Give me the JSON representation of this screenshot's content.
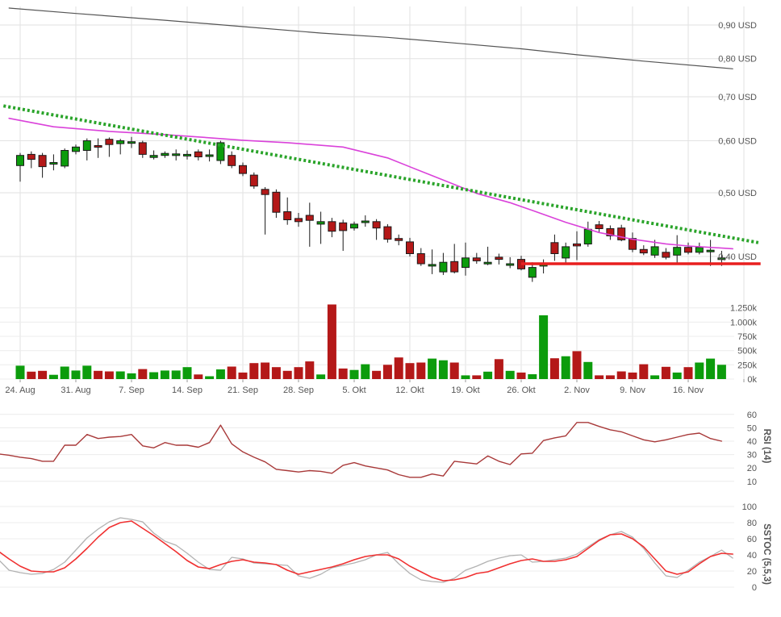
{
  "chart": {
    "type": "candlestick",
    "currency": "USD",
    "price_axis": {
      "labels": [
        "0,90 USD",
        "0,80 USD",
        "0,70 USD",
        "0,60 USD",
        "0,50 USD",
        "0,40 USD"
      ],
      "values": [
        0.9,
        0.8,
        0.7,
        0.6,
        0.5,
        0.4
      ],
      "scale": "log"
    },
    "date_axis": {
      "labels": [
        "24. Aug",
        "31. Aug",
        "7. Sep",
        "14. Sep",
        "21. Sep",
        "28. Sep",
        "5. Okt",
        "12. Okt",
        "19. Okt",
        "26. Okt",
        "2. Nov",
        "9. Nov",
        "16. Nov"
      ],
      "day_index": [
        0,
        5,
        10,
        15,
        20,
        25,
        30,
        35,
        40,
        45,
        50,
        55,
        60
      ],
      "extra_gridline_day": 65
    },
    "candles": [
      [
        0.55,
        0.575,
        0.52,
        0.57
      ],
      [
        0.572,
        0.578,
        0.545,
        0.562
      ],
      [
        0.57,
        0.575,
        0.527,
        0.548
      ],
      [
        0.553,
        0.572,
        0.541,
        0.556
      ],
      [
        0.549,
        0.584,
        0.545,
        0.58
      ],
      [
        0.578,
        0.592,
        0.572,
        0.587
      ],
      [
        0.58,
        0.605,
        0.56,
        0.6
      ],
      [
        0.59,
        0.605,
        0.565,
        0.587
      ],
      [
        0.603,
        0.607,
        0.567,
        0.592
      ],
      [
        0.594,
        0.604,
        0.572,
        0.6
      ],
      [
        0.596,
        0.608,
        0.585,
        0.598
      ],
      [
        0.596,
        0.6,
        0.565,
        0.572
      ],
      [
        0.566,
        0.58,
        0.562,
        0.57
      ],
      [
        0.57,
        0.578,
        0.565,
        0.574
      ],
      [
        0.572,
        0.582,
        0.56,
        0.573
      ],
      [
        0.571,
        0.58,
        0.562,
        0.572
      ],
      [
        0.577,
        0.582,
        0.56,
        0.567
      ],
      [
        0.57,
        0.582,
        0.558,
        0.571
      ],
      [
        0.56,
        0.6,
        0.553,
        0.596
      ],
      [
        0.57,
        0.578,
        0.545,
        0.55
      ],
      [
        0.55,
        0.556,
        0.53,
        0.535
      ],
      [
        0.532,
        0.537,
        0.507,
        0.512
      ],
      [
        0.506,
        0.51,
        0.432,
        0.497
      ],
      [
        0.501,
        0.506,
        0.458,
        0.467
      ],
      [
        0.468,
        0.492,
        0.447,
        0.455
      ],
      [
        0.457,
        0.466,
        0.444,
        0.452
      ],
      [
        0.462,
        0.483,
        0.414,
        0.454
      ],
      [
        0.448,
        0.468,
        0.418,
        0.452
      ],
      [
        0.452,
        0.458,
        0.428,
        0.437
      ],
      [
        0.45,
        0.455,
        0.408,
        0.438
      ],
      [
        0.442,
        0.452,
        0.438,
        0.448
      ],
      [
        0.452,
        0.462,
        0.444,
        0.453
      ],
      [
        0.452,
        0.456,
        0.424,
        0.442
      ],
      [
        0.444,
        0.448,
        0.42,
        0.425
      ],
      [
        0.426,
        0.432,
        0.416,
        0.423
      ],
      [
        0.421,
        0.427,
        0.4,
        0.404
      ],
      [
        0.404,
        0.412,
        0.387,
        0.39
      ],
      [
        0.388,
        0.41,
        0.376,
        0.389
      ],
      [
        0.379,
        0.405,
        0.375,
        0.392
      ],
      [
        0.393,
        0.418,
        0.377,
        0.379
      ],
      [
        0.385,
        0.42,
        0.374,
        0.398
      ],
      [
        0.398,
        0.405,
        0.39,
        0.394
      ],
      [
        0.39,
        0.414,
        0.388,
        0.392
      ],
      [
        0.399,
        0.404,
        0.389,
        0.396
      ],
      [
        0.388,
        0.399,
        0.384,
        0.39
      ],
      [
        0.396,
        0.401,
        0.381,
        0.383
      ],
      [
        0.372,
        0.392,
        0.366,
        0.385
      ],
      [
        0.387,
        0.396,
        0.377,
        0.389
      ],
      [
        0.42,
        0.432,
        0.394,
        0.404
      ],
      [
        0.398,
        0.42,
        0.39,
        0.414
      ],
      [
        0.418,
        0.437,
        0.395,
        0.415
      ],
      [
        0.418,
        0.452,
        0.414,
        0.44
      ],
      [
        0.447,
        0.453,
        0.435,
        0.441
      ],
      [
        0.441,
        0.446,
        0.424,
        0.43
      ],
      [
        0.442,
        0.447,
        0.422,
        0.424
      ],
      [
        0.426,
        0.435,
        0.406,
        0.41
      ],
      [
        0.41,
        0.416,
        0.402,
        0.405
      ],
      [
        0.402,
        0.424,
        0.398,
        0.414
      ],
      [
        0.406,
        0.412,
        0.396,
        0.399
      ],
      [
        0.402,
        0.431,
        0.389,
        0.413
      ],
      [
        0.413,
        0.42,
        0.403,
        0.406
      ],
      [
        0.406,
        0.42,
        0.403,
        0.413
      ],
      [
        0.407,
        0.424,
        0.387,
        0.409
      ],
      [
        0.398,
        0.408,
        0.387,
        0.398
      ]
    ],
    "volume": {
      "axis_labels": [
        "1.250k",
        "1.000k",
        "750k",
        "500k",
        "250k",
        "0k"
      ],
      "axis_values": [
        1250,
        1000,
        750,
        500,
        250,
        0
      ],
      "bars_k": [
        235,
        130,
        145,
        75,
        220,
        150,
        235,
        145,
        135,
        135,
        100,
        175,
        120,
        150,
        150,
        210,
        80,
        50,
        170,
        220,
        115,
        280,
        290,
        210,
        145,
        210,
        310,
        80,
        1310,
        185,
        160,
        260,
        145,
        250,
        380,
        280,
        290,
        360,
        330,
        290,
        65,
        65,
        130,
        350,
        145,
        115,
        85,
        1120,
        365,
        400,
        490,
        300,
        65,
        65,
        135,
        115,
        260,
        65,
        215,
        115,
        210,
        290,
        360,
        250
      ]
    },
    "overlays": {
      "ma_long_points": [
        [
          -1,
          0.955
        ],
        [
          5,
          0.937
        ],
        [
          13,
          0.915
        ],
        [
          20,
          0.895
        ],
        [
          27,
          0.875
        ],
        [
          33,
          0.862
        ],
        [
          39,
          0.845
        ],
        [
          45,
          0.828
        ],
        [
          50,
          0.811
        ],
        [
          56,
          0.793
        ],
        [
          64,
          0.772
        ]
      ],
      "ma_medium_points": [
        [
          -1,
          0.649
        ],
        [
          3,
          0.63
        ],
        [
          8,
          0.62
        ],
        [
          13,
          0.613
        ],
        [
          16,
          0.608
        ],
        [
          20,
          0.601
        ],
        [
          24,
          0.596
        ],
        [
          29,
          0.587
        ],
        [
          33,
          0.565
        ],
        [
          37,
          0.531
        ],
        [
          41,
          0.499
        ],
        [
          44,
          0.483
        ],
        [
          46,
          0.47
        ],
        [
          49,
          0.451
        ],
        [
          52,
          0.435
        ],
        [
          55,
          0.425
        ],
        [
          58,
          0.418
        ],
        [
          60,
          0.415
        ],
        [
          64,
          0.411
        ]
      ],
      "trendline": {
        "from_day": -1.5,
        "from_price": 0.678,
        "to_day": 66.3,
        "to_price": 0.42
      },
      "support": {
        "price": 0.39,
        "from_day": 45,
        "to_day": 66.5
      }
    },
    "indicators": {
      "rsi": {
        "title": "RSI (14)",
        "axis_labels": [
          "60",
          "50",
          "40",
          "30",
          "20",
          "10"
        ],
        "axis_values": [
          60,
          50,
          40,
          30,
          20,
          10
        ],
        "values": [
          30.5,
          29.5,
          28,
          27,
          25,
          25,
          37,
          37,
          45,
          42,
          43,
          43.5,
          45,
          36.5,
          35,
          39,
          37,
          37,
          35.5,
          39,
          52,
          38,
          32,
          28,
          24.5,
          19,
          18,
          17,
          18,
          17.5,
          16,
          22,
          24,
          21.5,
          20,
          18.5,
          15,
          13,
          13,
          15.5,
          14,
          25,
          24,
          23,
          29,
          25,
          22.5,
          30.5,
          31,
          40.5,
          42.5,
          44,
          54,
          54,
          51,
          48.5,
          47,
          44,
          41,
          39.5,
          41,
          43,
          45,
          46,
          42,
          40
        ]
      },
      "sstoc": {
        "title": "SSTOC (5,5,3)",
        "axis_labels": [
          "100",
          "80",
          "60",
          "40",
          "20",
          "0"
        ],
        "axis_values": [
          100,
          80,
          60,
          40,
          20,
          0
        ],
        "d_values": [
          45,
          35,
          26,
          20,
          19,
          19,
          24,
          35,
          48,
          62,
          74,
          80,
          82,
          73,
          64,
          54,
          44,
          33,
          25,
          23,
          28,
          32,
          34,
          31,
          30,
          28,
          21,
          16,
          19,
          22,
          25,
          29,
          34,
          38,
          40,
          40,
          35,
          26,
          19,
          12,
          8,
          9,
          12,
          17,
          19,
          24,
          29,
          33,
          35,
          32,
          32,
          34,
          38,
          48,
          58,
          65,
          66,
          60,
          50,
          35,
          20,
          16,
          19,
          29,
          38,
          42,
          41
        ],
        "k_values": [
          35,
          21,
          18,
          16,
          17,
          22,
          31,
          46,
          61,
          72,
          81,
          86,
          84,
          81,
          67,
          57,
          52,
          42,
          31,
          22,
          21,
          37,
          35,
          30,
          29,
          28,
          27,
          14,
          11,
          16,
          24,
          27,
          30,
          34,
          40,
          43,
          29,
          17,
          9,
          7,
          6,
          11,
          21,
          26,
          32,
          36,
          39,
          40,
          31,
          32,
          34,
          36,
          41,
          50,
          59,
          65,
          69,
          62,
          48,
          30,
          14,
          12,
          21,
          31,
          38,
          46,
          36
        ]
      }
    },
    "colors": {
      "up": "#0c9c0c",
      "down": "#b41818",
      "wick": "#1a1a1a",
      "grid": "#e2e2e2",
      "grid_light": "#ececec",
      "tick": "#999999",
      "axis_text": "#555555",
      "ma_long": "#555555",
      "ma_medium": "#da42da",
      "trendline": "#2aa42a",
      "support": "#e81f1f",
      "rsi_line": "#a83939",
      "sstoc_d": "#f03030",
      "sstoc_k": "#b2b2b2",
      "panel_title": "#4e7fae"
    }
  }
}
